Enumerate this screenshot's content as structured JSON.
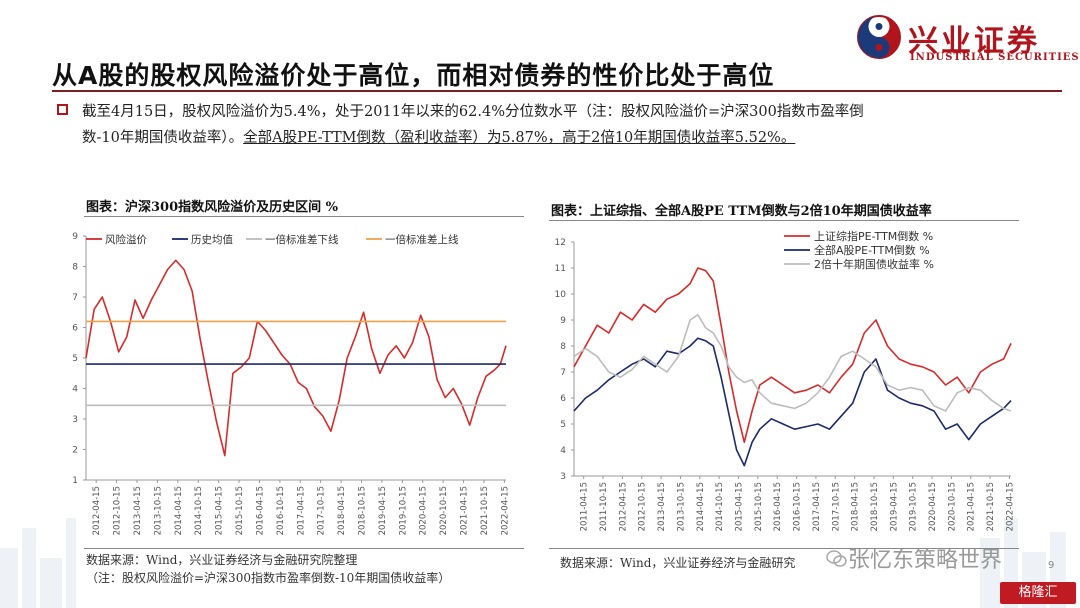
{
  "header": {
    "title": "从A股的股权风险溢价处于高位，而相对债券的性价比处于高位",
    "logo_cn": "兴业证券",
    "logo_en": "INDUSTRIAL SECURITIES"
  },
  "bullet": {
    "line1": "截至4月15日，股权风险溢价为5.4%，处于2011年以来的62.4%分位数水平（注：股权风险溢价=沪深300指数市盈率倒",
    "line2": "数-10年期国债收益率）。",
    "line2_underlined": "全部A股PE-TTM倒数（盈利收益率）为5.87%，高于2倍10年期国债收益率5.52%。"
  },
  "colors": {
    "brand": "#b0141c",
    "red": "#d62b2b",
    "navy": "#1b2a6b",
    "gray": "#bcbcbc",
    "orange": "#f0a24a"
  },
  "chart_data": [
    {
      "type": "line",
      "title": "图表：沪深300指数风险溢价及历史区间 %",
      "x_ticks": [
        "2012-04-15",
        "2012-10-15",
        "2013-04-15",
        "2013-10-15",
        "2014-04-15",
        "2014-10-15",
        "2015-04-15",
        "2015-10-15",
        "2016-04-15",
        "2016-10-15",
        "2017-04-15",
        "2017-10-15",
        "2018-04-15",
        "2018-10-15",
        "2019-04-15",
        "2019-10-15",
        "2020-04-15",
        "2020-10-15",
        "2021-04-15",
        "2021-10-15",
        "2022-04-15"
      ],
      "y_ticks": [
        "1",
        "2",
        "3",
        "4",
        "5",
        "6",
        "7",
        "8",
        "9"
      ],
      "ylim": [
        1,
        9
      ],
      "legend": [
        "风险溢价",
        "历史均值",
        "一倍标准差下线",
        "一倍标准差上线"
      ],
      "legend_position": "top",
      "series": [
        {
          "name": "风险溢价",
          "color": "#d62b2b",
          "x": [
            2012.0,
            2012.2,
            2012.4,
            2012.6,
            2012.8,
            2013.0,
            2013.2,
            2013.4,
            2013.6,
            2013.8,
            2014.0,
            2014.2,
            2014.4,
            2014.6,
            2014.8,
            2015.0,
            2015.2,
            2015.4,
            2015.6,
            2015.8,
            2016.0,
            2016.2,
            2016.4,
            2016.6,
            2016.8,
            2017.0,
            2017.2,
            2017.4,
            2017.6,
            2017.8,
            2018.0,
            2018.2,
            2018.4,
            2018.6,
            2018.8,
            2019.0,
            2019.2,
            2019.4,
            2019.6,
            2019.8,
            2020.0,
            2020.2,
            2020.4,
            2020.6,
            2020.8,
            2021.0,
            2021.2,
            2021.4,
            2021.6,
            2021.8,
            2022.0,
            2022.15,
            2022.29
          ],
          "y": [
            5.0,
            6.6,
            7.0,
            6.2,
            5.2,
            5.7,
            6.9,
            6.3,
            6.9,
            7.4,
            7.9,
            8.2,
            7.9,
            7.2,
            5.6,
            4.2,
            2.9,
            1.8,
            4.5,
            4.7,
            5.0,
            6.2,
            5.9,
            5.5,
            5.1,
            4.8,
            4.2,
            4.0,
            3.4,
            3.1,
            2.6,
            3.6,
            5.0,
            5.7,
            6.5,
            5.3,
            4.5,
            5.1,
            5.4,
            5.0,
            5.5,
            6.4,
            5.7,
            4.3,
            3.7,
            4.0,
            3.5,
            2.8,
            3.7,
            4.4,
            4.6,
            4.8,
            5.4
          ]
        },
        {
          "name": "历史均值",
          "color": "#1b2a6b",
          "x": [
            2012.0,
            2022.29
          ],
          "y": [
            4.8,
            4.8
          ]
        },
        {
          "name": "一倍标准差下线",
          "color": "#bcbcbc",
          "x": [
            2012.0,
            2022.29
          ],
          "y": [
            3.45,
            3.45
          ]
        },
        {
          "name": "一倍标准差上线",
          "color": "#f0a24a",
          "x": [
            2012.0,
            2022.29
          ],
          "y": [
            6.2,
            6.2
          ]
        }
      ]
    },
    {
      "type": "line",
      "title": "图表：上证综指、全部A股PE TTM倒数与2倍10年期国债收益率",
      "x_ticks": [
        "2011-04-15",
        "2011-10-15",
        "2012-04-15",
        "2012-10-15",
        "2013-04-15",
        "2013-10-15",
        "2014-04-15",
        "2014-10-15",
        "2015-04-15",
        "2015-10-15",
        "2016-04-15",
        "2016-10-15",
        "2017-04-15",
        "2017-10-15",
        "2018-04-15",
        "2018-10-15",
        "2019-04-15",
        "2019-10-15",
        "2020-04-15",
        "2020-10-15",
        "2021-04-15",
        "2021-10-15",
        "2022-04-15"
      ],
      "y_ticks": [
        "3",
        "4",
        "5",
        "6",
        "7",
        "8",
        "9",
        "10",
        "11",
        "12"
      ],
      "ylim": [
        3,
        12
      ],
      "legend": [
        "上证综指PE-TTM倒数 %",
        "全部A股PE-TTM倒数 %",
        "2倍十年期国债收益率 %"
      ],
      "legend_position": "top-right",
      "series": [
        {
          "name": "上证综指PE-TTM倒数 %",
          "color": "#d62b2b",
          "x": [
            2011.0,
            2011.3,
            2011.6,
            2011.9,
            2012.2,
            2012.5,
            2012.8,
            2013.1,
            2013.4,
            2013.7,
            2014.0,
            2014.2,
            2014.4,
            2014.6,
            2014.8,
            2015.0,
            2015.2,
            2015.4,
            2015.6,
            2015.8,
            2016.1,
            2016.4,
            2016.7,
            2017.0,
            2017.3,
            2017.6,
            2017.9,
            2018.2,
            2018.5,
            2018.8,
            2019.1,
            2019.4,
            2019.7,
            2020.0,
            2020.3,
            2020.6,
            2020.9,
            2021.2,
            2021.5,
            2021.8,
            2022.1,
            2022.29
          ],
          "y": [
            7.2,
            8.0,
            8.8,
            8.5,
            9.3,
            9.0,
            9.6,
            9.3,
            9.8,
            10.0,
            10.4,
            11.0,
            10.9,
            10.5,
            8.8,
            7.0,
            5.5,
            4.3,
            5.5,
            6.5,
            6.8,
            6.5,
            6.2,
            6.3,
            6.5,
            6.2,
            6.8,
            7.3,
            8.5,
            9.0,
            8.0,
            7.5,
            7.3,
            7.2,
            7.0,
            6.5,
            6.8,
            6.2,
            7.0,
            7.3,
            7.5,
            8.1
          ]
        },
        {
          "name": "全部A股PE-TTM倒数 %",
          "color": "#1b2a6b",
          "x": [
            2011.0,
            2011.3,
            2011.6,
            2011.9,
            2012.2,
            2012.5,
            2012.8,
            2013.1,
            2013.4,
            2013.7,
            2014.0,
            2014.2,
            2014.4,
            2014.6,
            2014.8,
            2015.0,
            2015.2,
            2015.4,
            2015.6,
            2015.8,
            2016.1,
            2016.4,
            2016.7,
            2017.0,
            2017.3,
            2017.6,
            2017.9,
            2018.2,
            2018.5,
            2018.8,
            2019.1,
            2019.4,
            2019.7,
            2020.0,
            2020.3,
            2020.6,
            2020.9,
            2021.2,
            2021.5,
            2021.8,
            2022.1,
            2022.29
          ],
          "y": [
            5.5,
            6.0,
            6.3,
            6.7,
            7.0,
            7.3,
            7.5,
            7.2,
            7.8,
            7.7,
            8.0,
            8.3,
            8.2,
            8.0,
            6.8,
            5.4,
            4.0,
            3.4,
            4.3,
            4.8,
            5.2,
            5.0,
            4.8,
            4.9,
            5.0,
            4.8,
            5.3,
            5.8,
            7.0,
            7.5,
            6.3,
            6.0,
            5.8,
            5.7,
            5.5,
            4.8,
            5.0,
            4.4,
            5.0,
            5.3,
            5.6,
            5.9
          ]
        },
        {
          "name": "2倍十年期国债收益率 %",
          "color": "#bcbcbc",
          "x": [
            2011.0,
            2011.3,
            2011.6,
            2011.9,
            2012.2,
            2012.5,
            2012.8,
            2013.1,
            2013.4,
            2013.7,
            2014.0,
            2014.2,
            2014.4,
            2014.6,
            2014.8,
            2015.0,
            2015.2,
            2015.4,
            2015.6,
            2015.8,
            2016.1,
            2016.4,
            2016.7,
            2017.0,
            2017.3,
            2017.6,
            2017.9,
            2018.2,
            2018.5,
            2018.8,
            2019.1,
            2019.4,
            2019.7,
            2020.0,
            2020.3,
            2020.6,
            2020.9,
            2021.2,
            2021.5,
            2021.8,
            2022.1,
            2022.29
          ],
          "y": [
            7.6,
            7.9,
            7.6,
            7.0,
            6.8,
            7.1,
            7.6,
            7.3,
            7.0,
            7.6,
            9.0,
            9.2,
            8.7,
            8.5,
            8.0,
            7.2,
            6.8,
            6.6,
            6.7,
            6.2,
            5.8,
            5.7,
            5.6,
            5.8,
            6.2,
            6.8,
            7.6,
            7.8,
            7.5,
            7.2,
            6.5,
            6.3,
            6.4,
            6.3,
            5.7,
            5.5,
            6.2,
            6.4,
            6.3,
            5.9,
            5.6,
            5.5
          ]
        }
      ]
    }
  ],
  "sources": {
    "left_line1": "数据来源：Wind，兴业证券经济与金融研究院整理",
    "left_line2": "（注：股权风险溢价=沪深300指数市盈率倒数-10年期国债收益率）",
    "right_line1": "数据来源：Wind，兴业证券经济与金融研究"
  },
  "watermark": "张忆东策略世界",
  "page_number": "9",
  "corner_badge": "格隆汇"
}
